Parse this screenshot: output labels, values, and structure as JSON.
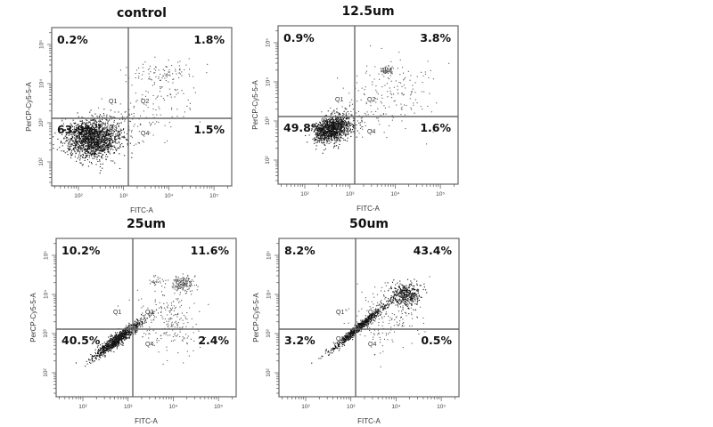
{
  "chart_data": {
    "type": "scatter",
    "title": "",
    "xlabel": "FITC-A",
    "ylabel": "PerCP-Cy5-5-A",
    "xscale": "log",
    "yscale": "log",
    "xlim": [
      50,
      250000
    ],
    "ylim": [
      25,
      250000
    ],
    "x_ticks": [
      "10²",
      "10³",
      "10⁴",
      "10⁵"
    ],
    "y_ticks": [
      "10²",
      "10³",
      "10⁴",
      "10⁵"
    ],
    "quadrant_labels": [
      "Q1",
      "Q2",
      "Q3",
      "Q4"
    ],
    "panels": [
      {
        "title": "control",
        "Q1": "0.2%",
        "Q2": "1.8%",
        "Q3": "63.9%",
        "Q4": "1.5%"
      },
      {
        "title": "12.5um",
        "Q1": "0.9%",
        "Q2": "3.8%",
        "Q3": "49.8%",
        "Q4": "1.6%"
      },
      {
        "title": "25um",
        "Q1": "10.2%",
        "Q2": "11.6%",
        "Q3": "40.5%",
        "Q4": "2.4%"
      },
      {
        "title": "50um",
        "Q1": "8.2%",
        "Q2": "43.4%",
        "Q3": "3.2%",
        "Q4": "0.5%"
      }
    ],
    "grid": false,
    "legend": "none"
  }
}
